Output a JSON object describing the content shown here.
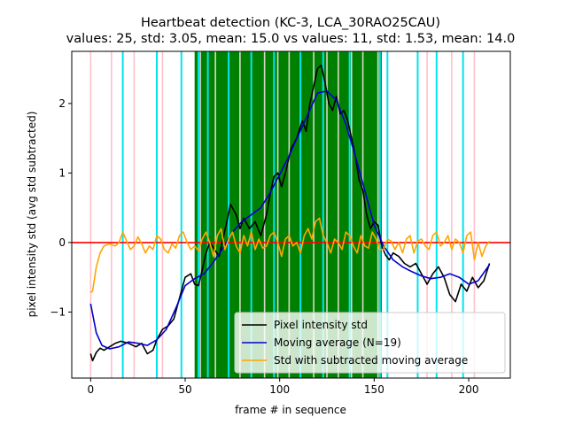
{
  "chart_data": {
    "type": "line",
    "title": "Heartbeat detection (KC-3, LCA_30RAO25CAU)",
    "subtitle": "values: 25, std: 3.05, mean: 15.0 vs values: 11, std: 1.53, mean: 14.0",
    "xlabel": "frame # in sequence",
    "ylabel": "pixel intensity std (avg std subtracted)",
    "xlim": [
      -10,
      222
    ],
    "ylim": [
      -1.95,
      2.75
    ],
    "xticks": [
      0,
      50,
      100,
      150,
      200
    ],
    "yticks": [
      -1,
      0,
      1,
      2
    ],
    "grid": false,
    "legend_position": "lower-right",
    "colors": {
      "pixel": "#000000",
      "moving_average": "#0000cc",
      "std_sub": "#ffa500",
      "zero_line": "#ff0000",
      "green_band": "#008000",
      "cyan_lines": "#00e5ee",
      "pink_lines": "#ffc0cb",
      "white_lines": "#d8d8c8"
    },
    "reference_line_y": 0,
    "green_band": [
      55,
      154
    ],
    "cyan_lines": [
      17,
      35,
      48,
      57,
      62,
      73,
      85,
      97,
      111,
      123,
      137,
      153,
      157,
      173,
      183,
      197
    ],
    "pink_lines": [
      0,
      11,
      23,
      38,
      157,
      178,
      191,
      203
    ],
    "white_lines": [
      58,
      66,
      73,
      79,
      85,
      92,
      99,
      105,
      111,
      118,
      125,
      131,
      138,
      144,
      152
    ],
    "series": [
      {
        "name": "Pixel intensity std",
        "key": "pixel",
        "x": [
          0,
          1,
          3,
          5,
          7,
          10,
          13,
          16,
          20,
          24,
          27,
          30,
          33,
          35,
          38,
          41,
          44,
          47,
          50,
          53,
          55,
          57,
          59,
          61,
          63,
          65,
          68,
          70,
          72,
          74,
          77,
          79,
          81,
          84,
          87,
          90,
          93,
          95,
          97,
          99,
          101,
          103,
          106,
          109,
          112,
          114,
          116,
          118,
          120,
          122,
          124,
          126,
          128,
          130,
          132,
          134,
          136,
          138,
          140,
          142,
          144,
          146,
          148,
          150,
          152,
          154,
          156,
          158,
          160,
          163,
          166,
          169,
          172,
          175,
          178,
          181,
          184,
          187,
          190,
          193,
          196,
          199,
          202,
          205,
          208,
          211
        ],
        "y": [
          -1.6,
          -1.7,
          -1.58,
          -1.52,
          -1.55,
          -1.5,
          -1.45,
          -1.42,
          -1.45,
          -1.5,
          -1.45,
          -1.6,
          -1.55,
          -1.4,
          -1.25,
          -1.2,
          -1.1,
          -0.8,
          -0.5,
          -0.45,
          -0.6,
          -0.62,
          -0.4,
          -0.15,
          0.0,
          -0.08,
          -0.2,
          0.05,
          0.3,
          0.55,
          0.4,
          0.2,
          0.35,
          0.2,
          0.3,
          0.1,
          0.4,
          0.7,
          0.95,
          1.0,
          0.8,
          1.0,
          1.35,
          1.5,
          1.75,
          1.6,
          2.0,
          2.25,
          2.5,
          2.55,
          2.3,
          2.0,
          1.9,
          2.1,
          1.85,
          1.9,
          1.75,
          1.5,
          1.25,
          0.9,
          0.75,
          0.4,
          0.2,
          0.3,
          0.25,
          -0.05,
          -0.18,
          -0.25,
          -0.15,
          -0.2,
          -0.3,
          -0.35,
          -0.3,
          -0.45,
          -0.6,
          -0.45,
          -0.35,
          -0.5,
          -0.75,
          -0.85,
          -0.6,
          -0.7,
          -0.5,
          -0.65,
          -0.55,
          -0.3
        ]
      },
      {
        "name": "Moving average (N=19)",
        "key": "moving_average",
        "x": [
          0,
          3,
          6,
          10,
          15,
          20,
          25,
          30,
          35,
          40,
          45,
          50,
          55,
          60,
          65,
          70,
          75,
          80,
          85,
          90,
          95,
          100,
          105,
          110,
          115,
          120,
          125,
          130,
          135,
          140,
          145,
          150,
          155,
          160,
          165,
          170,
          175,
          180,
          185,
          190,
          195,
          200,
          205,
          211
        ],
        "y": [
          -0.88,
          -1.3,
          -1.48,
          -1.53,
          -1.5,
          -1.43,
          -1.45,
          -1.48,
          -1.4,
          -1.25,
          -0.95,
          -0.62,
          -0.52,
          -0.45,
          -0.28,
          -0.08,
          0.15,
          0.3,
          0.4,
          0.5,
          0.72,
          0.98,
          1.25,
          1.55,
          1.85,
          2.15,
          2.18,
          2.05,
          1.7,
          1.25,
          0.75,
          0.25,
          -0.05,
          -0.25,
          -0.35,
          -0.42,
          -0.48,
          -0.52,
          -0.5,
          -0.45,
          -0.5,
          -0.6,
          -0.55,
          -0.32
        ]
      },
      {
        "name": "Std with subtracted moving average",
        "key": "std_sub",
        "x": [
          0,
          1,
          3,
          5,
          7,
          10,
          13,
          15,
          17,
          19,
          21,
          23,
          25,
          27,
          29,
          31,
          33,
          35,
          37,
          39,
          41,
          43,
          45,
          47,
          49,
          51,
          53,
          55,
          57,
          59,
          61,
          63,
          65,
          67,
          69,
          71,
          73,
          75,
          77,
          79,
          81,
          83,
          85,
          87,
          89,
          91,
          93,
          95,
          97,
          99,
          101,
          103,
          105,
          107,
          109,
          111,
          113,
          115,
          117,
          119,
          121,
          123,
          125,
          127,
          129,
          131,
          133,
          135,
          137,
          139,
          141,
          143,
          145,
          147,
          149,
          151,
          153,
          155,
          157,
          159,
          161,
          163,
          165,
          167,
          169,
          171,
          173,
          175,
          177,
          179,
          181,
          183,
          185,
          187,
          189,
          191,
          193,
          195,
          197,
          199,
          201,
          203,
          205,
          207,
          209,
          211
        ],
        "y": [
          -0.72,
          -0.7,
          -0.35,
          -0.15,
          -0.05,
          -0.02,
          -0.05,
          0.0,
          0.15,
          0.02,
          -0.1,
          -0.05,
          0.08,
          -0.02,
          -0.15,
          -0.05,
          -0.1,
          0.1,
          0.05,
          -0.1,
          -0.15,
          -0.02,
          -0.08,
          0.1,
          0.15,
          0.0,
          -0.1,
          -0.05,
          -0.12,
          0.05,
          0.15,
          0.0,
          -0.2,
          0.1,
          0.2,
          -0.1,
          0.05,
          0.15,
          -0.05,
          -0.15,
          0.1,
          -0.05,
          0.15,
          -0.1,
          0.05,
          -0.08,
          -0.05,
          0.1,
          0.15,
          0.0,
          -0.2,
          0.05,
          0.1,
          -0.05,
          0.0,
          -0.15,
          0.1,
          0.2,
          0.05,
          0.3,
          0.35,
          0.1,
          0.0,
          -0.15,
          0.05,
          0.0,
          -0.1,
          0.15,
          0.1,
          -0.05,
          -0.15,
          0.1,
          -0.05,
          -0.08,
          0.15,
          0.05,
          -0.1,
          -0.1,
          0.05,
          0.02,
          -0.1,
          0.0,
          -0.15,
          0.05,
          0.1,
          -0.15,
          0.02,
          0.05,
          -0.05,
          -0.1,
          0.1,
          0.15,
          -0.05,
          0.0,
          0.1,
          -0.1,
          0.05,
          0.0,
          -0.15,
          0.1,
          0.15,
          -0.25,
          0.0,
          -0.2,
          -0.05,
          0.02
        ]
      }
    ]
  }
}
